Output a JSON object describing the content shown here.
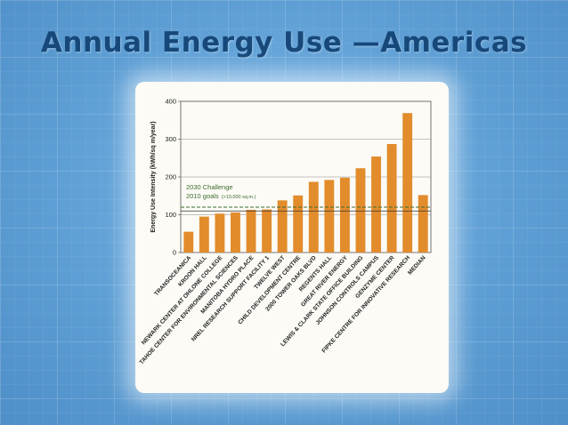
{
  "slide": {
    "title": "Annual Energy Use —Americas"
  },
  "colors": {
    "bar": "#e28c2c",
    "goal_line": "#3d6b2e",
    "reference_line": "#333333",
    "title": "#17487a"
  },
  "chart_data": {
    "type": "bar",
    "title": "",
    "xlabel": "",
    "ylabel": "Energy Use Intensity (kWh/sq m/year)",
    "ylim": [
      0,
      400
    ],
    "yticks": [
      0,
      100,
      200,
      300,
      400
    ],
    "grid": true,
    "categories": [
      "TRANSOCEANICA",
      "KROON HALL",
      "NEWARK CENTER AT OHLONE COLLEGE",
      "TAHOE CENTER FOR ENVIRONMENTAL SCIENCES",
      "MANITOBA HYDRO PLACE",
      "NREL RESEARCH SUPPORT FACILITY 1",
      "TWELVE WEST",
      "CHILD DEVELOPMENT CENTRE",
      "2000 TOWER OAKS BLVD",
      "REGENTS HALL",
      "GREAT RIVER ENERGY",
      "LEWIS & CLARK STATE OFFICE BUILDING",
      "JOHNSON CONTROLS CAMPUS",
      "GENZYME CENTER",
      "FIPKE CENTRE FOR INNOVATIVE RESEARCH",
      "MEDIAN"
    ],
    "values": [
      55,
      95,
      103,
      106,
      113,
      114,
      138,
      151,
      187,
      192,
      198,
      223,
      254,
      287,
      369,
      152
    ],
    "reference_lines": [
      {
        "name": "2030 Challenge",
        "value": 120,
        "style": "dashed"
      },
      {
        "name": "2010 goals",
        "value": 110,
        "style": "solid"
      }
    ],
    "annotation": {
      "line1": "2030 Challenge",
      "line2": "2010 goals",
      "line2_note": "(>10,000 sq.m.)"
    }
  }
}
